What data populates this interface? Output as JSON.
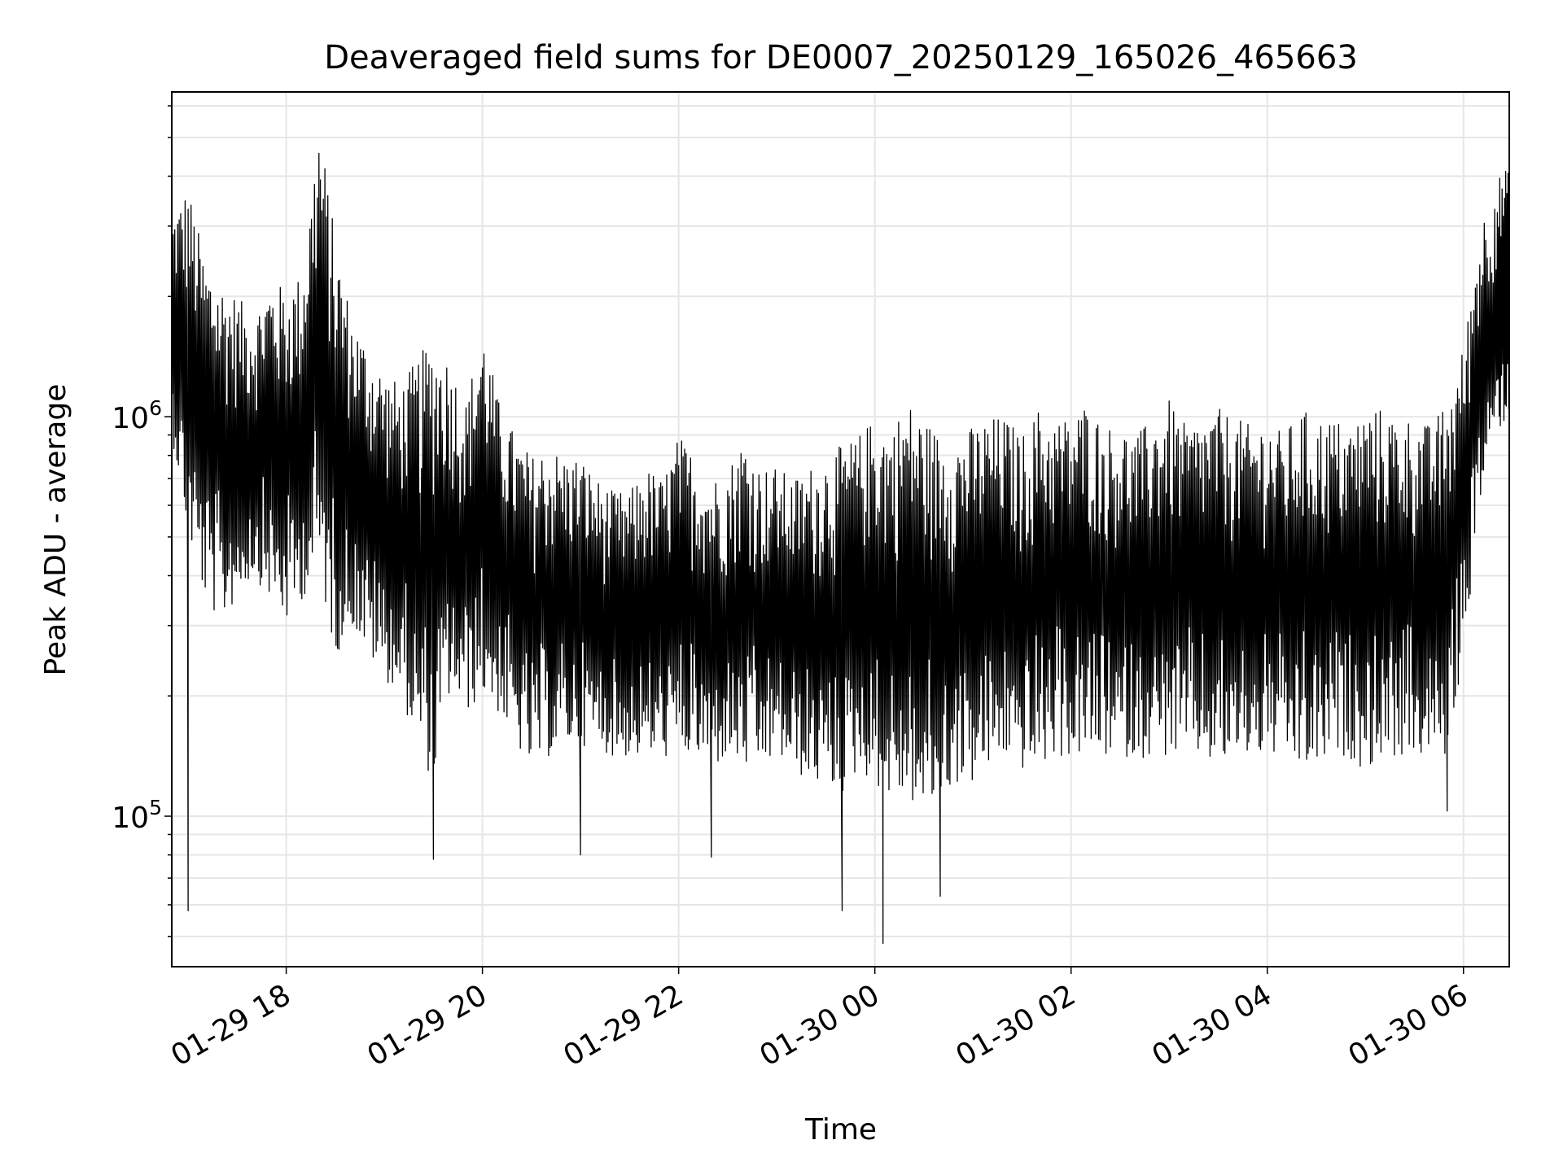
{
  "chart_data": {
    "type": "line",
    "title": "Deaveraged field sums for DE0007_20250129_165026_465663",
    "xlabel": "Time",
    "ylabel": "Peak ADU - average",
    "x_ticks": [
      "01-29 18",
      "01-29 20",
      "01-29 22",
      "01-30 00",
      "01-30 02",
      "01-30 04",
      "01-30 06"
    ],
    "y_ticks": [
      {
        "base": "10",
        "exp": "5",
        "value": 100000
      },
      {
        "base": "10",
        "exp": "6",
        "value": 1000000
      }
    ],
    "xlim": [
      "2025-01-29 16:50",
      "2025-01-30 06:28"
    ],
    "ylim": [
      42000,
      6500000
    ],
    "yscale": "log",
    "grid": true,
    "line_color": "#000000",
    "series": [
      {
        "name": "",
        "envelope_note": "",
        "x": [
          "2025-01-29 16:50",
          "2025-01-29 17:00",
          "2025-01-29 17:10",
          "2025-01-29 17:20",
          "2025-01-29 17:30",
          "2025-01-29 17:40",
          "2025-01-29 17:50",
          "2025-01-29 18:00",
          "2025-01-29 18:10",
          "2025-01-29 18:20",
          "2025-01-29 18:30",
          "2025-01-29 18:40",
          "2025-01-29 18:50",
          "2025-01-29 19:00",
          "2025-01-29 19:10",
          "2025-01-29 19:20",
          "2025-01-29 19:30",
          "2025-01-29 19:40",
          "2025-01-29 19:50",
          "2025-01-29 20:00",
          "2025-01-29 20:10",
          "2025-01-29 20:20",
          "2025-01-29 20:30",
          "2025-01-29 20:40",
          "2025-01-29 20:50",
          "2025-01-29 21:00",
          "2025-01-29 21:10",
          "2025-01-29 21:20",
          "2025-01-29 21:30",
          "2025-01-29 21:40",
          "2025-01-29 21:50",
          "2025-01-29 22:00",
          "2025-01-29 22:10",
          "2025-01-29 22:20",
          "2025-01-29 22:30",
          "2025-01-29 22:40",
          "2025-01-29 22:50",
          "2025-01-29 23:00",
          "2025-01-29 23:10",
          "2025-01-29 23:20",
          "2025-01-29 23:30",
          "2025-01-29 23:40",
          "2025-01-29 23:50",
          "2025-01-30 00:00",
          "2025-01-30 00:10",
          "2025-01-30 00:20",
          "2025-01-30 00:30",
          "2025-01-30 00:40",
          "2025-01-30 00:50",
          "2025-01-30 01:00",
          "2025-01-30 01:10",
          "2025-01-30 01:20",
          "2025-01-30 01:30",
          "2025-01-30 01:40",
          "2025-01-30 01:50",
          "2025-01-30 02:00",
          "2025-01-30 02:10",
          "2025-01-30 02:20",
          "2025-01-30 02:30",
          "2025-01-30 02:40",
          "2025-01-30 02:50",
          "2025-01-30 03:00",
          "2025-01-30 03:10",
          "2025-01-30 03:20",
          "2025-01-30 03:30",
          "2025-01-30 03:40",
          "2025-01-30 03:50",
          "2025-01-30 04:00",
          "2025-01-30 04:10",
          "2025-01-30 04:20",
          "2025-01-30 04:30",
          "2025-01-30 04:40",
          "2025-01-30 04:50",
          "2025-01-30 05:00",
          "2025-01-30 05:10",
          "2025-01-30 05:20",
          "2025-01-30 05:30",
          "2025-01-30 05:40",
          "2025-01-30 05:50",
          "2025-01-30 06:00",
          "2025-01-30 06:10",
          "2025-01-30 06:20",
          "2025-01-30 06:28"
        ],
        "high": [
          3200000,
          3800000,
          2500000,
          2200000,
          2000000,
          1800000,
          2200000,
          2100000,
          2300000,
          5600000,
          2800000,
          1800000,
          1500000,
          1300000,
          1200000,
          1400000,
          1600000,
          1400000,
          1100000,
          1700000,
          1100000,
          900000,
          800000,
          850000,
          800000,
          800000,
          700000,
          650000,
          650000,
          750000,
          700000,
          900000,
          800000,
          700000,
          750000,
          900000,
          750000,
          750000,
          700000,
          750000,
          800000,
          850000,
          900000,
          1000000,
          950000,
          1100000,
          1000000,
          900000,
          900000,
          950000,
          1000000,
          1000000,
          900000,
          1050000,
          1000000,
          1000000,
          1100000,
          950000,
          950000,
          900000,
          1000000,
          1100000,
          950000,
          1000000,
          1050000,
          1000000,
          950000,
          1000000,
          900000,
          1050000,
          1000000,
          1000000,
          950000,
          1050000,
          1050000,
          1000000,
          1000000,
          950000,
          1100000,
          1500000,
          3000000,
          4000000,
          4200000
        ],
        "low": [
          900000,
          500000,
          350000,
          300000,
          350000,
          400000,
          350000,
          300000,
          350000,
          400000,
          250000,
          300000,
          250000,
          220000,
          200000,
          150000,
          120000,
          200000,
          180000,
          200000,
          180000,
          150000,
          130000,
          140000,
          150000,
          150000,
          150000,
          140000,
          140000,
          140000,
          140000,
          140000,
          140000,
          130000,
          140000,
          130000,
          130000,
          140000,
          130000,
          120000,
          120000,
          110000,
          130000,
          120000,
          110000,
          110000,
          100000,
          110000,
          120000,
          120000,
          130000,
          140000,
          130000,
          130000,
          140000,
          140000,
          140000,
          140000,
          140000,
          140000,
          140000,
          140000,
          140000,
          140000,
          130000,
          140000,
          140000,
          140000,
          140000,
          130000,
          130000,
          140000,
          140000,
          130000,
          140000,
          140000,
          140000,
          140000,
          140000,
          250000,
          600000,
          900000,
          1000000
        ],
        "spikes_down": [
          {
            "x": "2025-01-29 17:00",
            "y": 58000
          },
          {
            "x": "2025-01-29 19:30",
            "y": 78000
          },
          {
            "x": "2025-01-29 21:00",
            "y": 80000
          },
          {
            "x": "2025-01-29 22:20",
            "y": 79000
          },
          {
            "x": "2025-01-29 23:40",
            "y": 58000
          },
          {
            "x": "2025-01-30 00:05",
            "y": 48000
          },
          {
            "x": "2025-01-30 00:40",
            "y": 63000
          },
          {
            "x": "2025-01-30 05:50",
            "y": 103000
          }
        ]
      }
    ]
  }
}
